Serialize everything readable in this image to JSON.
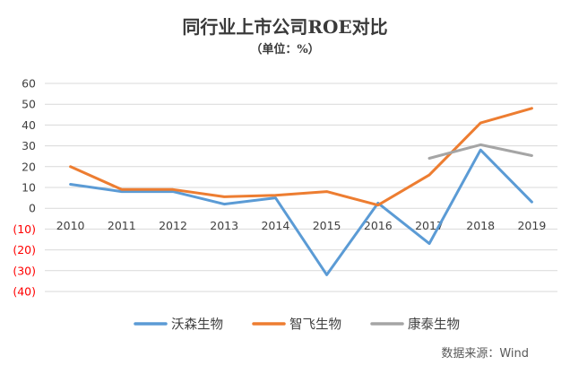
{
  "chart_data": {
    "type": "line",
    "title": "同行业上市公司ROE对比",
    "subtitle": "（单位：%）",
    "categories": [
      "2010",
      "2011",
      "2012",
      "2013",
      "2014",
      "2015",
      "2016",
      "2017",
      "2018",
      "2019"
    ],
    "y_ticks": [
      {
        "value": 60,
        "label": "60"
      },
      {
        "value": 50,
        "label": "50"
      },
      {
        "value": 40,
        "label": "40"
      },
      {
        "value": 30,
        "label": "30"
      },
      {
        "value": 20,
        "label": "20"
      },
      {
        "value": 10,
        "label": "10"
      },
      {
        "value": 0,
        "label": "0"
      },
      {
        "value": -10,
        "label": "(10)"
      },
      {
        "value": -20,
        "label": "(20)"
      },
      {
        "value": -30,
        "label": "(30)"
      },
      {
        "value": -40,
        "label": "(40)"
      }
    ],
    "ylim": [
      -40,
      60
    ],
    "grid": true,
    "legend_position": "bottom",
    "negative_tick_color": "#ff0000",
    "series": [
      {
        "name": "沃森生物",
        "color": "#5b9bd5",
        "values": [
          11.5,
          8,
          8,
          2,
          5,
          -32,
          2.5,
          -17,
          28,
          3
        ]
      },
      {
        "name": "智飞生物",
        "color": "#ed7d31",
        "values": [
          20,
          9,
          9,
          5.5,
          6.2,
          8,
          1.5,
          16,
          41,
          48
        ]
      },
      {
        "name": "康泰生物",
        "color": "#a5a5a5",
        "values": [
          null,
          null,
          null,
          null,
          null,
          null,
          null,
          24,
          30.5,
          25.3
        ]
      }
    ]
  },
  "source_note": "数据来源：Wind"
}
